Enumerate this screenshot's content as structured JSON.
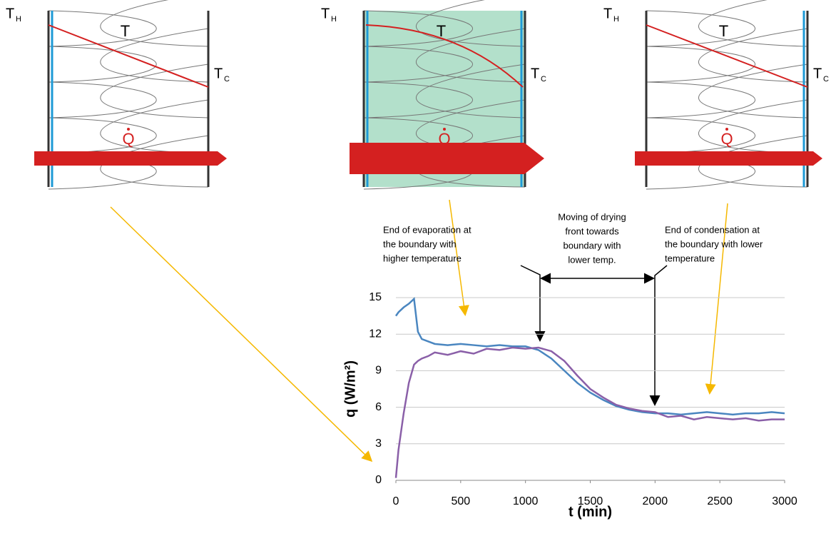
{
  "diagrams": [
    {
      "hot_label": "T",
      "hot_sub": "H",
      "temp_label": "T",
      "cold_label": "T",
      "cold_sub": "C",
      "heat_label": "Q"
    },
    {
      "hot_label": "T",
      "hot_sub": "H",
      "temp_label": "T",
      "cold_label": "T",
      "cold_sub": "C",
      "heat_label": "Q"
    },
    {
      "hot_label": "T",
      "hot_sub": "H",
      "temp_label": "T",
      "cold_label": "T",
      "cold_sub": "C",
      "heat_label": "Q"
    }
  ],
  "chart_data": {
    "type": "line",
    "xlabel": "t (min)",
    "ylabel": "q (W/m²)",
    "annotations": [
      [
        "End of evaporation at",
        "the boundary with",
        "higher temperature"
      ],
      [
        "Moving of drying",
        "front towards",
        "boundary with",
        "lower temp."
      ],
      [
        "End of condensation at",
        "the boundary with lower",
        "temperature"
      ]
    ],
    "x": [
      0,
      20,
      60,
      100,
      140,
      170,
      200,
      250,
      300,
      400,
      500,
      600,
      700,
      800,
      900,
      1000,
      1100,
      1200,
      1300,
      1400,
      1500,
      1600,
      1700,
      1800,
      1900,
      2000,
      2100,
      2200,
      2300,
      2400,
      2500,
      2600,
      2700,
      2800,
      2900,
      3000
    ],
    "series": [
      {
        "color": "#4a86c0",
        "values": [
          13.5,
          13.8,
          14.2,
          14.5,
          14.9,
          12.2,
          11.6,
          11.4,
          11.2,
          11.1,
          11.2,
          11.1,
          11.0,
          11.1,
          11.0,
          11.0,
          10.7,
          10.0,
          9.0,
          8.0,
          7.2,
          6.6,
          6.1,
          5.8,
          5.6,
          5.5,
          5.5,
          5.4,
          5.5,
          5.6,
          5.5,
          5.4,
          5.5,
          5.5,
          5.6,
          5.5
        ]
      },
      {
        "color": "#8a5fa8",
        "values": [
          0.2,
          2.5,
          5.5,
          8,
          9.5,
          9.8,
          10.0,
          10.2,
          10.5,
          10.3,
          10.6,
          10.4,
          10.8,
          10.7,
          10.9,
          10.8,
          10.9,
          10.6,
          9.8,
          8.6,
          7.5,
          6.8,
          6.2,
          5.9,
          5.7,
          5.6,
          5.2,
          5.3,
          5.0,
          5.2,
          5.1,
          5.0,
          5.1,
          4.9,
          5.0,
          5.0
        ]
      }
    ],
    "xlim": [
      0,
      3000
    ],
    "xticks": [
      0,
      500,
      1000,
      1500,
      2000,
      2500,
      3000
    ],
    "ylim": [
      0,
      15
    ],
    "yticks": [
      0,
      3,
      6,
      9,
      12,
      15
    ],
    "grid": true
  }
}
